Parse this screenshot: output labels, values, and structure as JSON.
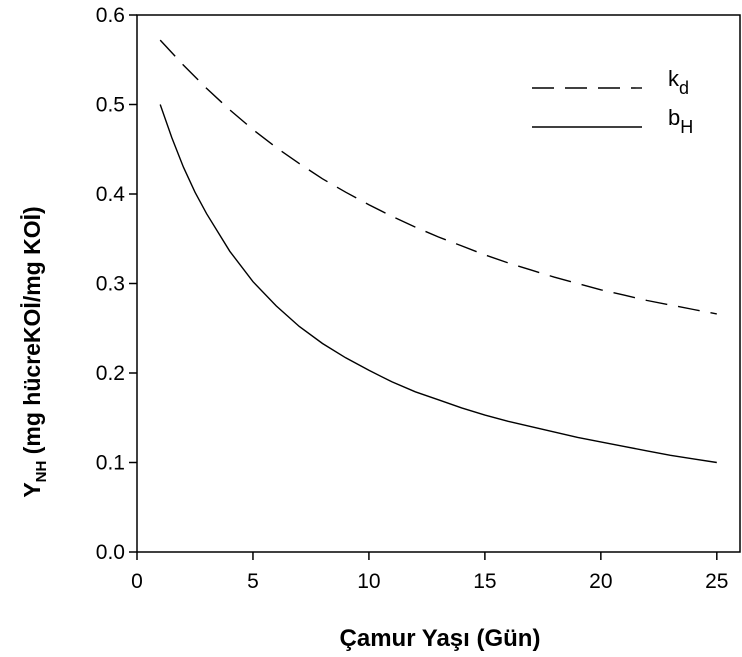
{
  "chart_data": {
    "type": "line",
    "xlabel": "Çamur Yaşı (Gün)",
    "ylabel": "Y",
    "ylabel_sub": "NH",
    "ylabel_rest": " (mg hücreKOİ/mg KOİ)",
    "xlim": [
      0,
      26
    ],
    "ylim": [
      0,
      0.6
    ],
    "xticks": [
      0,
      5,
      10,
      15,
      20,
      25
    ],
    "yticks": [
      0.0,
      0.1,
      0.2,
      0.3,
      0.4,
      0.5,
      0.6
    ],
    "xtick_labels": [
      "0",
      "5",
      "10",
      "15",
      "20",
      "25"
    ],
    "ytick_labels": [
      "0.0",
      "0.1",
      "0.2",
      "0.3",
      "0.4",
      "0.5",
      "0.6"
    ],
    "grid": false,
    "legend_position": "top-right",
    "series": [
      {
        "name": "k",
        "name_sub": "d",
        "style": "dashed",
        "color": "#000000",
        "x": [
          1,
          2,
          3,
          4,
          5,
          6,
          7,
          8,
          9,
          10,
          11,
          12,
          13,
          14,
          15,
          16,
          17,
          18,
          19,
          20,
          21,
          22,
          23,
          24,
          25
        ],
        "y": [
          0.572,
          0.544,
          0.518,
          0.494,
          0.472,
          0.452,
          0.434,
          0.417,
          0.402,
          0.388,
          0.375,
          0.363,
          0.352,
          0.342,
          0.332,
          0.323,
          0.315,
          0.307,
          0.3,
          0.293,
          0.287,
          0.281,
          0.276,
          0.271,
          0.266
        ]
      },
      {
        "name": "b",
        "name_sub": "H",
        "style": "solid",
        "color": "#000000",
        "x": [
          1,
          1.5,
          2,
          2.5,
          3,
          4,
          5,
          6,
          7,
          8,
          9,
          10,
          11,
          12,
          13,
          14,
          15,
          16,
          17,
          18,
          19,
          20,
          21,
          22,
          23,
          24,
          25
        ],
        "y": [
          0.5,
          0.463,
          0.43,
          0.402,
          0.378,
          0.336,
          0.302,
          0.275,
          0.252,
          0.233,
          0.217,
          0.203,
          0.19,
          0.179,
          0.17,
          0.161,
          0.153,
          0.146,
          0.14,
          0.134,
          0.128,
          0.123,
          0.118,
          0.113,
          0.108,
          0.104,
          0.1
        ]
      }
    ]
  }
}
